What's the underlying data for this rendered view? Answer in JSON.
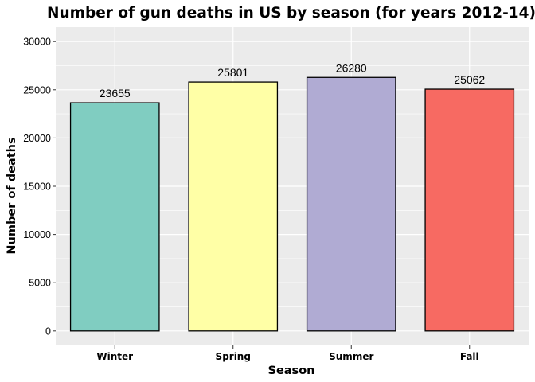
{
  "chart_data": {
    "type": "bar",
    "title": "Number of gun deaths in US by season (for years 2012-14)",
    "xlabel": "Season",
    "ylabel": "Number of deaths",
    "categories": [
      "Winter",
      "Spring",
      "Summer",
      "Fall"
    ],
    "values": [
      23655,
      25801,
      26280,
      25062
    ],
    "data_labels": [
      "23655",
      "25801",
      "26280",
      "25062"
    ],
    "colors": [
      "#80CDC1",
      "#FFFFA6",
      "#B0ABD3",
      "#F76A62"
    ],
    "ylim": [
      -1500,
      31500
    ],
    "yticks": [
      0,
      5000,
      10000,
      15000,
      20000,
      25000,
      30000
    ],
    "ytick_labels": [
      "0",
      "5000",
      "10000",
      "15000",
      "20000",
      "25000",
      "30000"
    ],
    "grid": true,
    "legend": "none",
    "panel_background": "#EBEBEB"
  }
}
